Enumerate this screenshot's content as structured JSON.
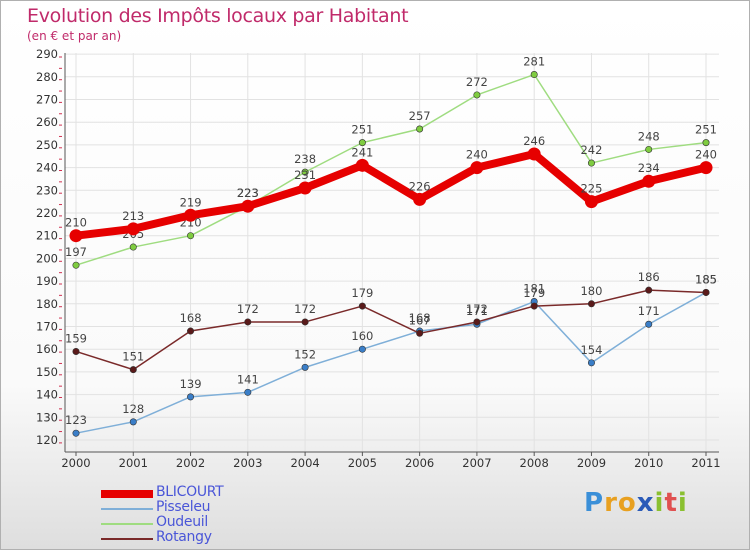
{
  "header": {
    "title": "Evolution des Impôts locaux par Habitant",
    "subtitle": "(en € et par an)"
  },
  "logo": {
    "letters": [
      "P",
      "r",
      "o",
      "x",
      "i",
      "t",
      "i"
    ],
    "colors": [
      "#3a8fd8",
      "#e8a020",
      "#e8a020",
      "#2a5ab8",
      "#8ac030",
      "#e05050",
      "#8ac030"
    ]
  },
  "chart_data": {
    "type": "line",
    "x": [
      "2000",
      "2001",
      "2002",
      "2003",
      "2004",
      "2005",
      "2006",
      "2007",
      "2008",
      "2009",
      "2010",
      "2011"
    ],
    "ylim": [
      120,
      290
    ],
    "yticks": [
      120,
      130,
      140,
      150,
      160,
      170,
      180,
      190,
      200,
      210,
      220,
      230,
      240,
      250,
      260,
      270,
      280,
      290
    ],
    "grid": true,
    "legend_position": "bottom-left",
    "series": [
      {
        "name": "BLICOURT",
        "values": [
          210,
          213,
          219,
          223,
          231,
          241,
          226,
          240,
          246,
          225,
          234,
          240
        ],
        "color": "#e60000",
        "marker": "#e60000",
        "emphasis": true
      },
      {
        "name": "Pisseleu",
        "values": [
          123,
          128,
          139,
          141,
          152,
          160,
          168,
          171,
          181,
          154,
          171,
          185
        ],
        "color": "#7fafd8",
        "marker": "#3a7ec8",
        "emphasis": false
      },
      {
        "name": "Oudeuil",
        "values": [
          197,
          205,
          210,
          223,
          238,
          251,
          257,
          272,
          281,
          242,
          248,
          251
        ],
        "color": "#9fdc80",
        "marker": "#7fcc40",
        "emphasis": false
      },
      {
        "name": "Rotangy",
        "values": [
          159,
          151,
          168,
          172,
          172,
          179,
          167,
          172,
          179,
          180,
          186,
          185
        ],
        "color": "#7a2a2a",
        "marker": "#5a1a1a",
        "emphasis": false
      }
    ]
  }
}
